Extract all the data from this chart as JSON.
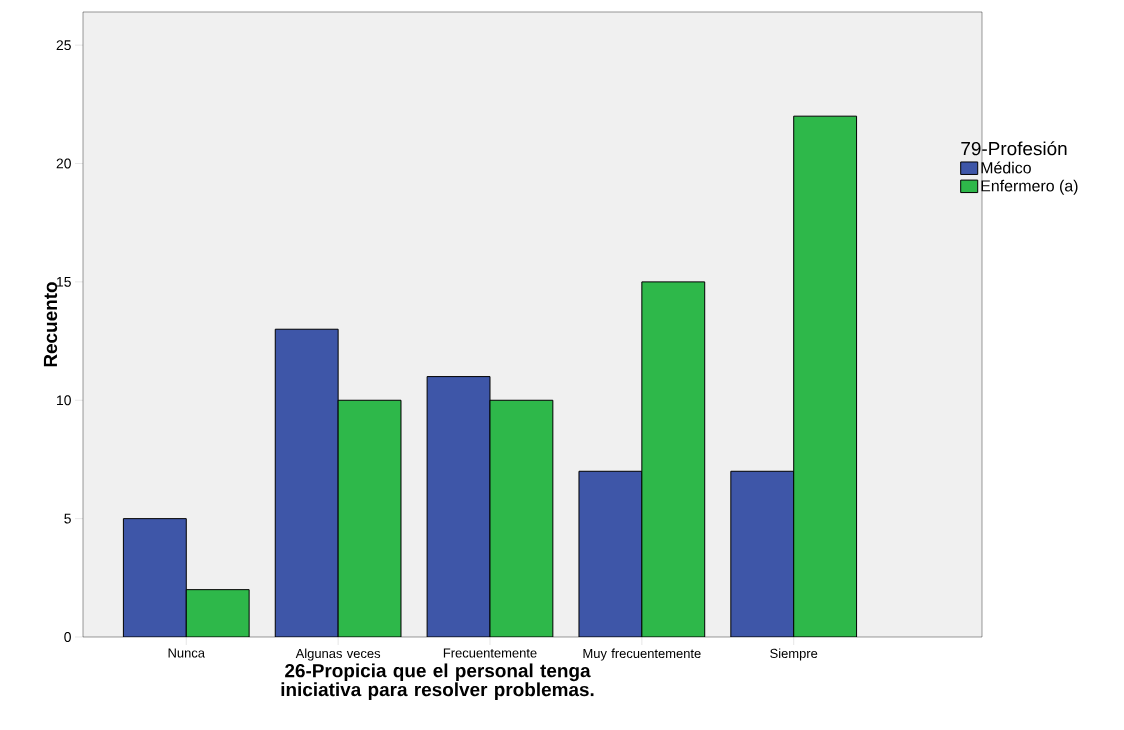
{
  "chart_data": {
    "type": "bar",
    "xlabel": "26-Propicia que el personal tenga iniciativa para resolver problemas.",
    "ylabel": "Recuento",
    "legend_title": "79-Profesión",
    "categories": [
      "Nunca",
      "Algunas veces",
      "Frecuentemente",
      "Muy frecuentemente",
      "Siempre"
    ],
    "series": [
      {
        "name": "Médico",
        "color": "#3e56a8",
        "values": [
          5,
          13,
          11,
          7,
          7
        ]
      },
      {
        "name": "Enfermero (a)",
        "color": "#2eb84a",
        "values": [
          2,
          10,
          10,
          15,
          22
        ]
      }
    ],
    "ylim": [
      0,
      26.4
    ],
    "yticks": [
      0,
      5,
      10,
      15,
      20,
      25
    ],
    "legend": "right",
    "grid": false
  }
}
